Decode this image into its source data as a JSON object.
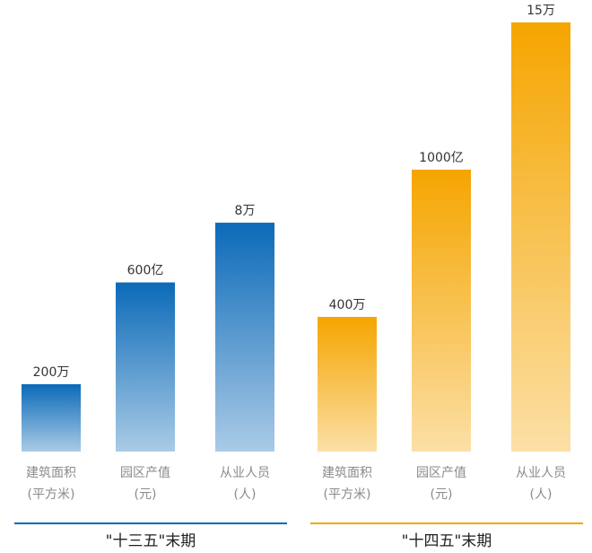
{
  "chart_data": {
    "type": "bar",
    "categories": [
      "建筑面积",
      "园区产值",
      "从业人员"
    ],
    "units": [
      "(平方米)",
      "(元)",
      "(人)"
    ],
    "series": [
      {
        "name": "\"十三五\"末期",
        "color": "#0b6ab8",
        "values": [
          200,
          600,
          8
        ],
        "value_labels": [
          "200万",
          "600亿",
          "8万"
        ]
      },
      {
        "name": "\"十四五\"末期",
        "color": "#f5a500",
        "values": [
          400,
          1000,
          15
        ],
        "value_labels": [
          "400万",
          "1000亿",
          "15万"
        ]
      }
    ]
  }
}
